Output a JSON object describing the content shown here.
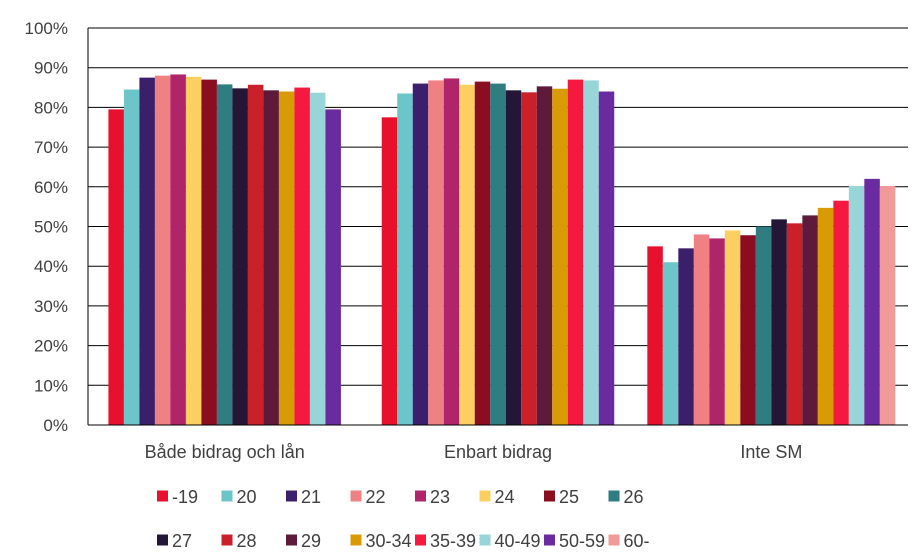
{
  "chart_data": {
    "type": "bar",
    "categories": [
      "Både bidrag och lån",
      "Enbart bidrag",
      "Inte SM"
    ],
    "y_ticks": [
      "0%",
      "10%",
      "20%",
      "30%",
      "40%",
      "50%",
      "60%",
      "70%",
      "80%",
      "90%",
      "100%"
    ],
    "ylim": [
      0,
      100
    ],
    "grid": true,
    "legend_position": "bottom",
    "series": [
      {
        "name": "-19",
        "color": "#e8112d",
        "values": [
          79.5,
          77.5,
          45
        ]
      },
      {
        "name": "20",
        "color": "#6cc5c8",
        "values": [
          84.5,
          83.5,
          41
        ]
      },
      {
        "name": "21",
        "color": "#3b1f6b",
        "values": [
          87.5,
          86,
          44.5
        ]
      },
      {
        "name": "22",
        "color": "#ef8183",
        "values": [
          88,
          86.8,
          48
        ]
      },
      {
        "name": "23",
        "color": "#b0246a",
        "values": [
          88.3,
          87.3,
          47
        ]
      },
      {
        "name": "24",
        "color": "#fdcf60",
        "values": [
          87.7,
          85.7,
          49
        ]
      },
      {
        "name": "25",
        "color": "#8b0d22",
        "values": [
          87,
          86.5,
          47.8
        ]
      },
      {
        "name": "26",
        "color": "#2f7d80",
        "values": [
          85.8,
          86,
          50
        ]
      },
      {
        "name": "27",
        "color": "#231636",
        "values": [
          84.8,
          84.3,
          51.8
        ]
      },
      {
        "name": "28",
        "color": "#c9202a",
        "values": [
          85.7,
          83.8,
          50.8
        ]
      },
      {
        "name": "29",
        "color": "#5e1a3a",
        "values": [
          84.3,
          85.3,
          52.8
        ]
      },
      {
        "name": "30-34",
        "color": "#d89b06",
        "values": [
          84,
          84.7,
          54.7
        ]
      },
      {
        "name": "35-39",
        "color": "#f5193f",
        "values": [
          85,
          87,
          56.5
        ]
      },
      {
        "name": "40-49",
        "color": "#98d5d8",
        "values": [
          83.7,
          86.8,
          60.2
        ]
      },
      {
        "name": "50-59",
        "color": "#6b2ba0",
        "values": [
          79.5,
          84,
          62
        ]
      },
      {
        "name": "60-",
        "color": "#f19a9a",
        "values": [
          null,
          null,
          60.2
        ]
      }
    ]
  }
}
